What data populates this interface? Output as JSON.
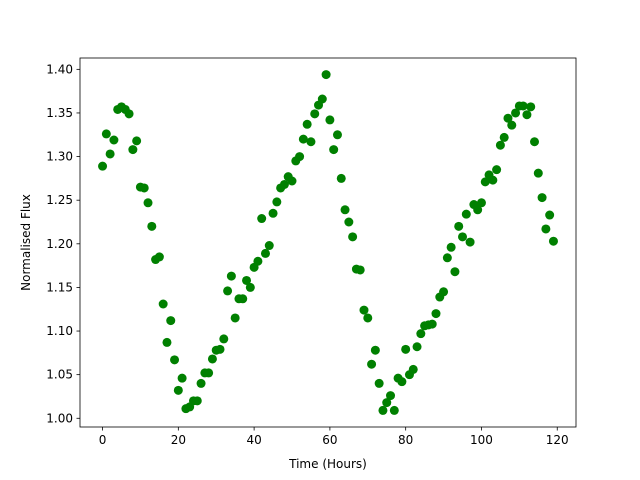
{
  "chart_data": {
    "type": "scatter",
    "xlabel": "Time (Hours)",
    "ylabel": "Normalised Flux",
    "color": "#008000",
    "x": [
      0,
      1,
      2,
      3,
      4,
      5,
      6,
      7,
      8,
      9,
      10,
      11,
      12,
      13,
      14,
      15,
      16,
      17,
      18,
      19,
      20,
      21,
      22,
      23,
      24,
      25,
      26,
      27,
      28,
      29,
      30,
      31,
      32,
      33,
      34,
      35,
      36,
      37,
      38,
      39,
      40,
      41,
      42,
      43,
      44,
      45,
      46,
      47,
      48,
      49,
      50,
      51,
      52,
      53,
      54,
      55,
      56,
      57,
      58,
      59,
      60,
      61,
      62,
      63,
      64,
      65,
      66,
      67,
      68,
      69,
      70,
      71,
      72,
      73,
      74,
      75,
      76,
      77,
      78,
      79,
      80,
      81,
      82,
      83,
      84,
      85,
      86,
      87,
      88,
      89,
      90,
      91,
      92,
      93,
      94,
      95,
      96,
      97,
      98,
      99,
      100,
      101,
      102,
      103,
      104,
      105,
      106,
      107,
      108,
      109,
      110,
      111,
      112,
      113,
      114,
      115,
      116,
      117,
      118,
      119
    ],
    "values": [
      1.289,
      1.326,
      1.303,
      1.319,
      1.354,
      1.357,
      1.354,
      1.349,
      1.308,
      1.318,
      1.265,
      1.264,
      1.247,
      1.22,
      1.182,
      1.185,
      1.131,
      1.087,
      1.112,
      1.067,
      1.032,
      1.046,
      1.011,
      1.013,
      1.02,
      1.02,
      1.04,
      1.052,
      1.052,
      1.068,
      1.078,
      1.079,
      1.091,
      1.146,
      1.163,
      1.115,
      1.137,
      1.137,
      1.158,
      1.15,
      1.173,
      1.18,
      1.229,
      1.189,
      1.198,
      1.235,
      1.248,
      1.264,
      1.268,
      1.277,
      1.272,
      1.295,
      1.3,
      1.32,
      1.337,
      1.317,
      1.349,
      1.359,
      1.366,
      1.394,
      1.342,
      1.308,
      1.325,
      1.275,
      1.239,
      1.225,
      1.208,
      1.171,
      1.17,
      1.124,
      1.115,
      1.062,
      1.078,
      1.04,
      1.009,
      1.018,
      1.026,
      1.009,
      1.046,
      1.042,
      1.079,
      1.05,
      1.056,
      1.082,
      1.097,
      1.106,
      1.107,
      1.108,
      1.12,
      1.139,
      1.145,
      1.184,
      1.196,
      1.168,
      1.22,
      1.208,
      1.234,
      1.202,
      1.245,
      1.239,
      1.247,
      1.271,
      1.279,
      1.273,
      1.285,
      1.313,
      1.322,
      1.344,
      1.336,
      1.35,
      1.358,
      1.358,
      1.348,
      1.357,
      1.317,
      1.281,
      1.253,
      1.217,
      1.233,
      1.203
    ],
    "xlim": [
      -5.95,
      124.95
    ],
    "ylim": [
      0.99,
      1.413
    ],
    "xticks": [
      0,
      20,
      40,
      60,
      80,
      100,
      120
    ],
    "yticks": [
      {
        "value": 1.0,
        "label": "1.00"
      },
      {
        "value": 1.05,
        "label": "1.05"
      },
      {
        "value": 1.1,
        "label": "1.10"
      },
      {
        "value": 1.15,
        "label": "1.15"
      },
      {
        "value": 1.2,
        "label": "1.20"
      },
      {
        "value": 1.25,
        "label": "1.25"
      },
      {
        "value": 1.3,
        "label": "1.30"
      },
      {
        "value": 1.35,
        "label": "1.35"
      },
      {
        "value": 1.4,
        "label": "1.40"
      }
    ],
    "grid": false
  }
}
